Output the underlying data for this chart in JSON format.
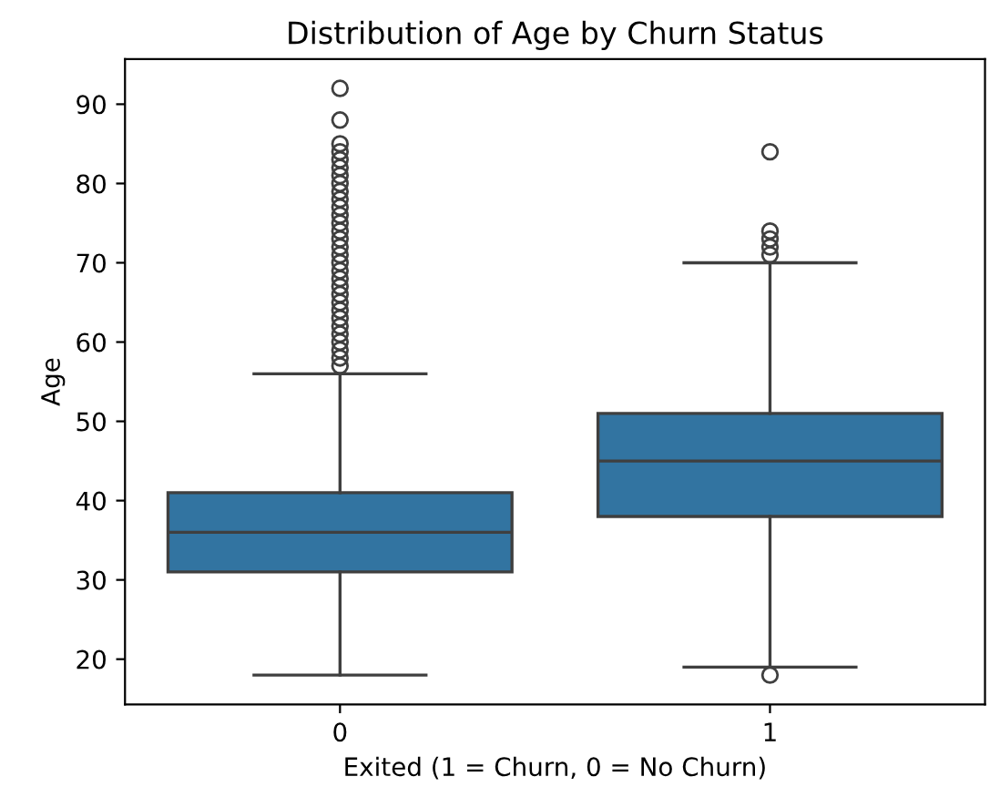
{
  "chart_data": {
    "type": "box",
    "title": "Distribution of Age by Churn Status",
    "xlabel": "Exited (1 = Churn, 0 = No Churn)",
    "ylabel": "Age",
    "categories": [
      "0",
      "1"
    ],
    "color": "#3274a1",
    "boxes": [
      {
        "low": 18,
        "q1": 31,
        "median": 36,
        "q3": 41,
        "high": 56,
        "outliers": [
          57,
          58,
          59,
          60,
          61,
          62,
          63,
          64,
          65,
          66,
          67,
          68,
          69,
          70,
          71,
          72,
          73,
          74,
          75,
          76,
          77,
          78,
          79,
          80,
          81,
          82,
          83,
          84,
          85,
          88,
          92
        ]
      },
      {
        "low": 19,
        "q1": 38,
        "median": 45,
        "q3": 51,
        "high": 70,
        "outliers": [
          18,
          71,
          72,
          73,
          74,
          84
        ]
      }
    ],
    "ylim": [
      14.3,
      95.7
    ],
    "yticks": [
      20,
      30,
      40,
      50,
      60,
      70,
      80,
      90
    ],
    "grid": false
  }
}
